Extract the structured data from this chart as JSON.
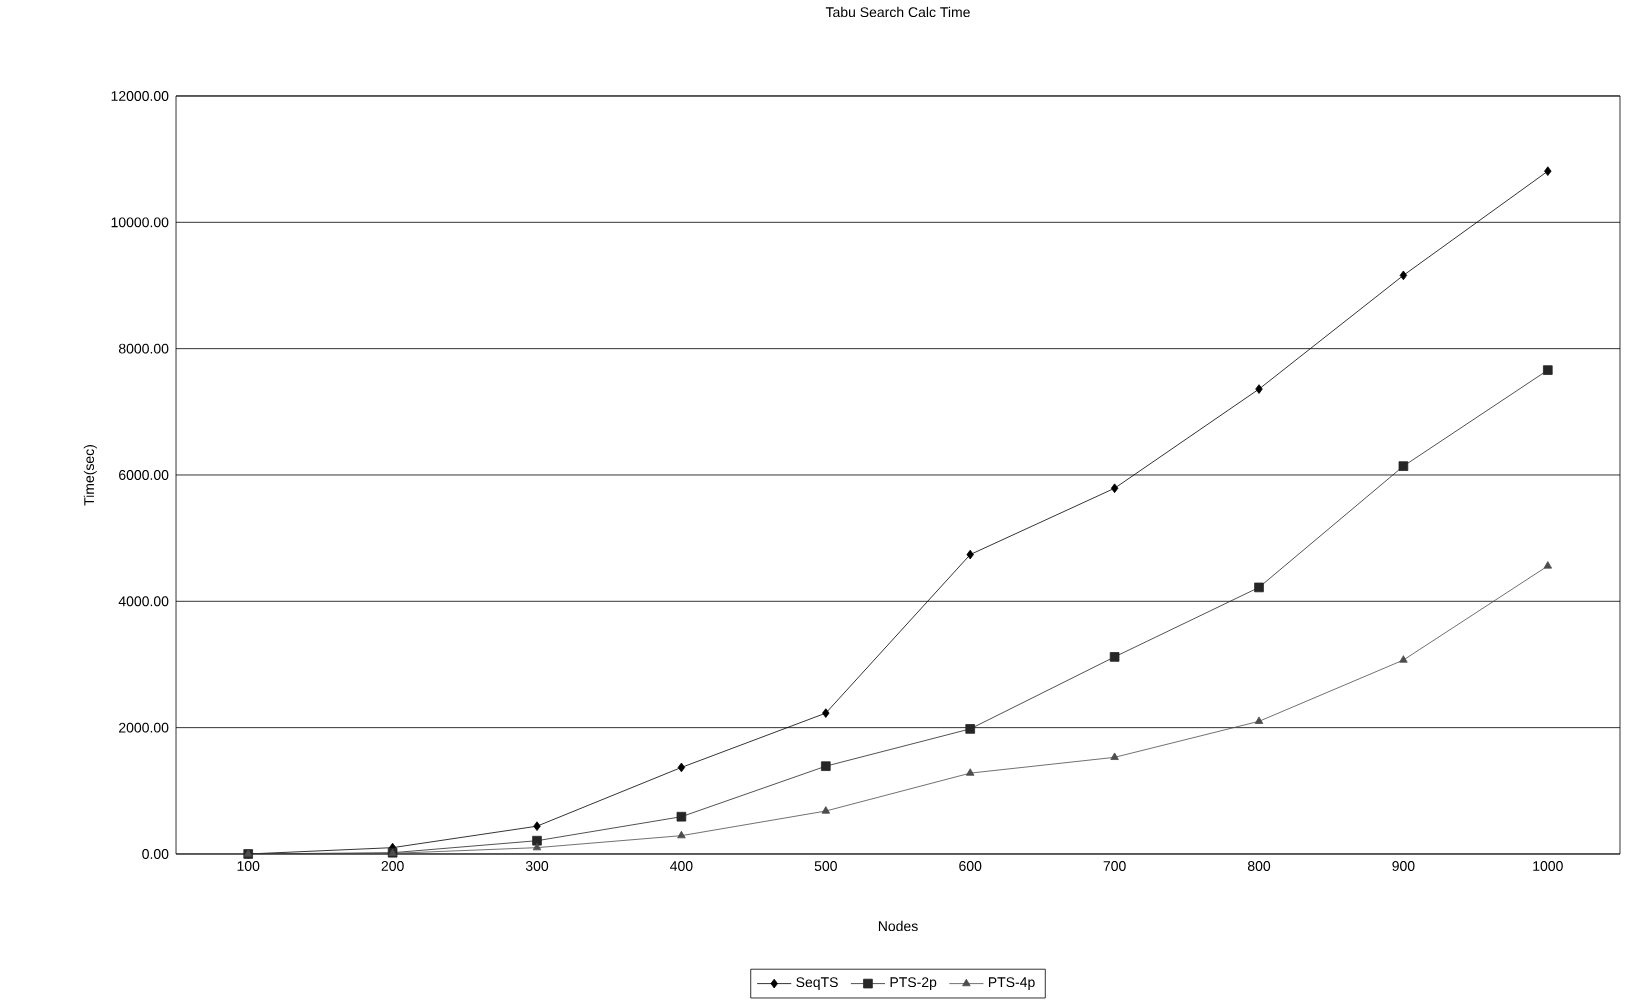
{
  "chart_data": {
    "type": "line",
    "title": "Tabu Search Calc Time",
    "xlabel": "Nodes",
    "ylabel": "Time(sec)",
    "categories": [
      "100",
      "200",
      "300",
      "400",
      "500",
      "600",
      "700",
      "800",
      "900",
      "1000"
    ],
    "series": [
      {
        "name": "SeqTS",
        "color": "#000000",
        "marker": "diamond",
        "values": [
          0,
          100,
          440,
          1370,
          2230,
          4740,
          5790,
          7360,
          9160,
          10810
        ]
      },
      {
        "name": "PTS-2p",
        "color": "#262626",
        "marker": "square",
        "values": [
          0,
          20,
          210,
          590,
          1390,
          1980,
          3120,
          4220,
          6140,
          7660
        ]
      },
      {
        "name": "PTS-4p",
        "color": "#4d4d4d",
        "marker": "triangle",
        "values": [
          0,
          10,
          100,
          290,
          680,
          1280,
          1530,
          2100,
          3070,
          4560
        ]
      }
    ],
    "ylim": [
      0,
      12000
    ],
    "yticks": [
      {
        "value": 0,
        "label": "0.00"
      },
      {
        "value": 2000,
        "label": "2000.00"
      },
      {
        "value": 4000,
        "label": "4000.00"
      },
      {
        "value": 6000,
        "label": "6000.00"
      },
      {
        "value": 8000,
        "label": "8000.00"
      },
      {
        "value": 10000,
        "label": "10000.00"
      },
      {
        "value": 12000,
        "label": "12000.00"
      }
    ],
    "grid": "y",
    "legend": "bottom",
    "line_style": "solid"
  }
}
